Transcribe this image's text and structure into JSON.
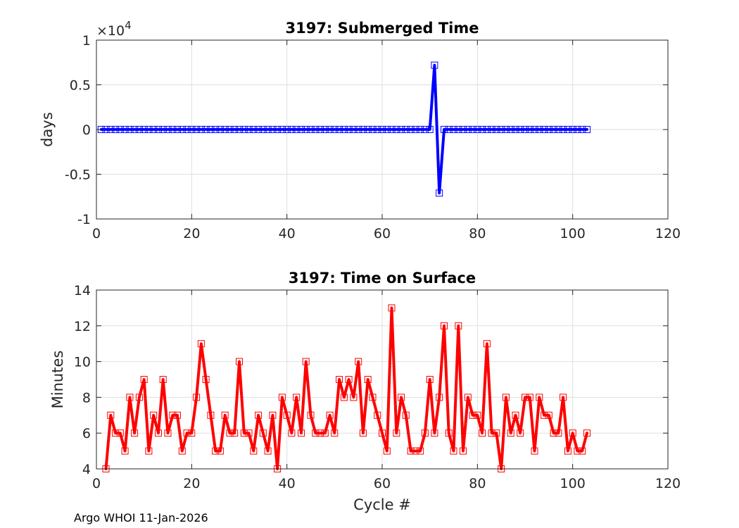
{
  "footer": "Argo WHOI 11-Jan-2026",
  "chart_data": [
    {
      "type": "line",
      "title": "3197: Submerged Time",
      "ylabel": "days",
      "xlabel": "",
      "exponent_label": "×10",
      "exponent_power": "4",
      "xlim": [
        0,
        120
      ],
      "ylim": [
        -1,
        1
      ],
      "xticks": [
        0,
        20,
        40,
        60,
        80,
        100,
        120
      ],
      "yticks": [
        -1,
        -0.5,
        0,
        0.5,
        1
      ],
      "ytick_labels": [
        "-1",
        "-0.5",
        "0",
        "0.5",
        "1"
      ],
      "grid": true,
      "color": "#0000ff",
      "marker": "square",
      "x": [
        1,
        2,
        3,
        4,
        5,
        6,
        7,
        8,
        9,
        10,
        11,
        12,
        13,
        14,
        15,
        16,
        17,
        18,
        19,
        20,
        21,
        22,
        23,
        24,
        25,
        26,
        27,
        28,
        29,
        30,
        31,
        32,
        33,
        34,
        35,
        36,
        37,
        38,
        39,
        40,
        41,
        42,
        43,
        44,
        45,
        46,
        47,
        48,
        49,
        50,
        51,
        52,
        53,
        54,
        55,
        56,
        57,
        58,
        59,
        60,
        61,
        62,
        63,
        64,
        65,
        66,
        67,
        68,
        69,
        70,
        71,
        72,
        73,
        74,
        75,
        76,
        77,
        78,
        79,
        80,
        81,
        82,
        83,
        84,
        85,
        86,
        87,
        88,
        89,
        90,
        91,
        92,
        93,
        94,
        95,
        96,
        97,
        98,
        99,
        100,
        101,
        102,
        103
      ],
      "values": [
        0.001,
        0.001,
        0.001,
        0.001,
        0.001,
        0.001,
        0.001,
        0.001,
        0.001,
        0.001,
        0.001,
        0.001,
        0.001,
        0.001,
        0.001,
        0.001,
        0.001,
        0.001,
        0.001,
        0.001,
        0.001,
        0.001,
        0.001,
        0.001,
        0.001,
        0.001,
        0.001,
        0.001,
        0.001,
        0.001,
        0.001,
        0.001,
        0.001,
        0.001,
        0.001,
        0.001,
        0.001,
        0.001,
        0.001,
        0.001,
        0.001,
        0.001,
        0.001,
        0.001,
        0.001,
        0.001,
        0.001,
        0.001,
        0.001,
        0.001,
        0.001,
        0.001,
        0.001,
        0.001,
        0.001,
        0.001,
        0.001,
        0.001,
        0.001,
        0.001,
        0.001,
        0.001,
        0.001,
        0.001,
        0.001,
        0.001,
        0.001,
        0.001,
        0.001,
        0.001,
        0.72,
        -0.71,
        0.001,
        0.001,
        0.001,
        0.001,
        0.001,
        0.001,
        0.001,
        0.001,
        0.001,
        0.001,
        0.001,
        0.001,
        0.001,
        0.001,
        0.001,
        0.001,
        0.001,
        0.001,
        0.001,
        0.001,
        0.001,
        0.001,
        0.001,
        0.001,
        0.001,
        0.001,
        0.001,
        0.001,
        0.001,
        0.001,
        0.001
      ]
    },
    {
      "type": "line",
      "title": "3197: Time on Surface",
      "ylabel": "Minutes",
      "xlabel": "Cycle #",
      "xlim": [
        0,
        120
      ],
      "ylim": [
        4,
        14
      ],
      "xticks": [
        0,
        20,
        40,
        60,
        80,
        100,
        120
      ],
      "yticks": [
        4,
        6,
        8,
        10,
        12,
        14
      ],
      "ytick_labels": [
        "4",
        "6",
        "8",
        "10",
        "12",
        "14"
      ],
      "grid": true,
      "color": "#ff0000",
      "marker": "square",
      "x": [
        2,
        3,
        4,
        5,
        6,
        7,
        8,
        9,
        10,
        11,
        12,
        13,
        14,
        15,
        16,
        17,
        18,
        19,
        20,
        21,
        22,
        23,
        24,
        25,
        26,
        27,
        28,
        29,
        30,
        31,
        32,
        33,
        34,
        35,
        36,
        37,
        38,
        39,
        40,
        41,
        42,
        43,
        44,
        45,
        46,
        47,
        48,
        49,
        50,
        51,
        52,
        53,
        54,
        55,
        56,
        57,
        58,
        59,
        60,
        61,
        62,
        63,
        64,
        65,
        66,
        67,
        68,
        69,
        70,
        71,
        72,
        73,
        74,
        75,
        76,
        77,
        78,
        79,
        80,
        81,
        82,
        83,
        84,
        85,
        86,
        87,
        88,
        89,
        90,
        91,
        92,
        93,
        94,
        95,
        96,
        97,
        98,
        99,
        100,
        101,
        102,
        103
      ],
      "values": [
        4,
        7,
        6,
        6,
        5,
        8,
        6,
        8,
        9,
        5,
        7,
        6,
        9,
        6,
        7,
        7,
        5,
        6,
        6,
        8,
        11,
        9,
        7,
        5,
        5,
        7,
        6,
        6,
        10,
        6,
        6,
        5,
        7,
        6,
        5,
        7,
        4,
        8,
        7,
        6,
        8,
        6,
        10,
        7,
        6,
        6,
        6,
        7,
        6,
        9,
        8,
        9,
        8,
        10,
        6,
        9,
        8,
        7,
        6,
        5,
        13,
        6,
        8,
        7,
        5,
        5,
        5,
        6,
        9,
        6,
        8,
        12,
        6,
        5,
        12,
        5,
        8,
        7,
        7,
        6,
        11,
        6,
        6,
        4,
        8,
        6,
        7,
        6,
        8,
        8,
        5,
        8,
        7,
        7,
        6,
        6,
        8,
        5,
        6,
        5,
        5,
        6
      ]
    }
  ]
}
